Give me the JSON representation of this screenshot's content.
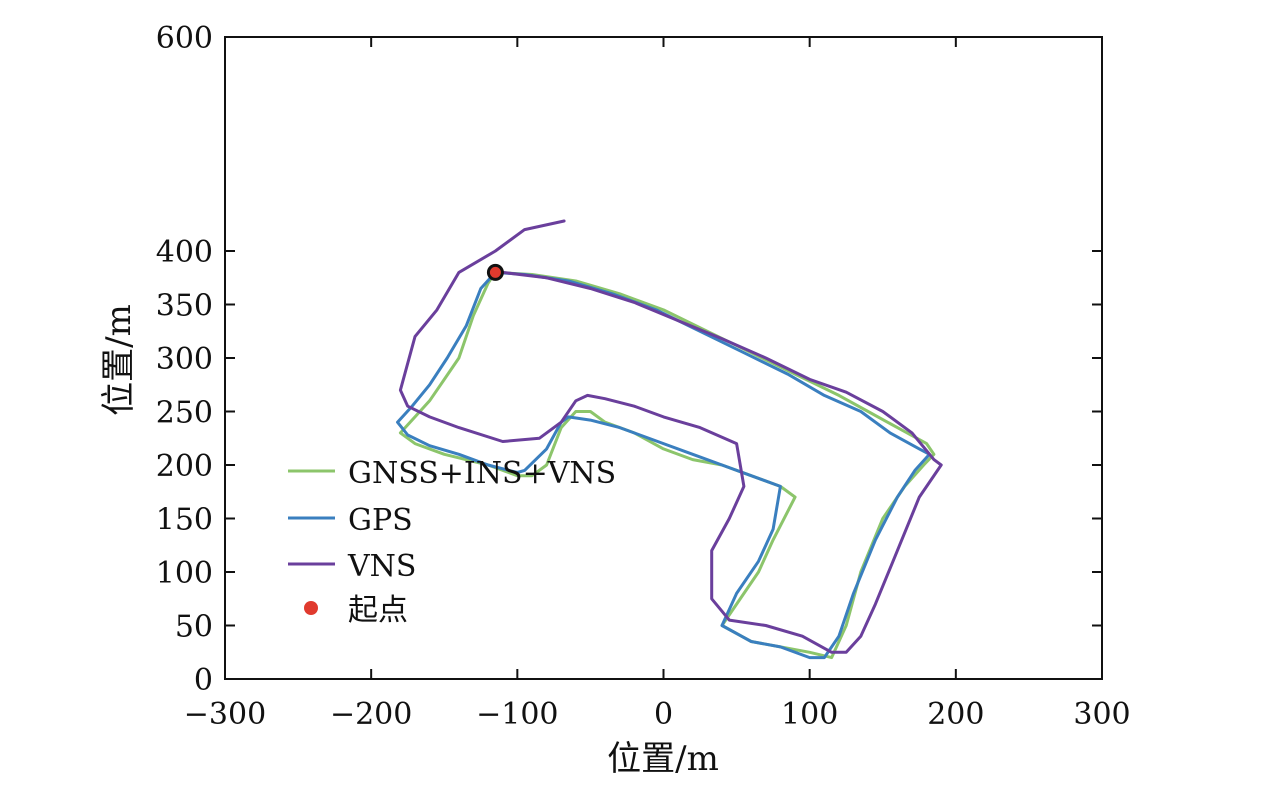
{
  "chart_data": {
    "type": "line",
    "title": "",
    "xlabel": "位置/m",
    "ylabel": "位置/m",
    "xlim": [
      -300,
      300
    ],
    "ylim": [
      0,
      600
    ],
    "xticks": [
      -300,
      -200,
      -100,
      0,
      100,
      200,
      300
    ],
    "yticks": [
      0,
      50,
      100,
      150,
      200,
      250,
      300,
      350,
      400,
      600
    ],
    "xtick_labels": [
      "−300",
      "−200",
      "−100",
      "0",
      "100",
      "200",
      "300"
    ],
    "ytick_labels": [
      "0",
      "50",
      "100",
      "150",
      "200",
      "250",
      "300",
      "350",
      "400",
      "600"
    ],
    "grid": false,
    "legend_position": "lower-left",
    "series": [
      {
        "name": "GNSS+INS+VNS",
        "color": "#8cc56b",
        "x": [
          -115,
          -120,
          -130,
          -140,
          -150,
          -160,
          -170,
          -180,
          -170,
          -150,
          -120,
          -100,
          -90,
          -80,
          -70,
          -60,
          -50,
          -40,
          -20,
          0,
          20,
          40,
          60,
          80,
          90,
          75,
          65,
          50,
          40,
          60,
          80,
          100,
          115,
          125,
          135,
          150,
          165,
          178,
          185,
          180,
          160,
          140,
          120,
          90,
          60,
          30,
          0,
          -30,
          -60,
          -90,
          -115
        ],
        "y": [
          380,
          370,
          340,
          300,
          280,
          260,
          245,
          230,
          220,
          210,
          200,
          190,
          190,
          200,
          235,
          250,
          250,
          240,
          230,
          215,
          205,
          200,
          190,
          180,
          170,
          130,
          100,
          70,
          50,
          35,
          30,
          25,
          20,
          50,
          100,
          150,
          180,
          200,
          210,
          220,
          235,
          250,
          265,
          285,
          305,
          325,
          345,
          360,
          372,
          378,
          380
        ]
      },
      {
        "name": "GPS",
        "color": "#3a7fbf",
        "x": [
          -115,
          -125,
          -135,
          -148,
          -160,
          -172,
          -182,
          -175,
          -160,
          -140,
          -120,
          -100,
          -95,
          -80,
          -70,
          -65,
          -50,
          -30,
          0,
          20,
          40,
          60,
          80,
          75,
          65,
          50,
          40,
          60,
          80,
          100,
          110,
          120,
          130,
          145,
          160,
          172,
          182,
          175,
          155,
          135,
          110,
          85,
          55,
          25,
          -5,
          -35,
          -65,
          -95,
          -115
        ],
        "y": [
          380,
          365,
          330,
          300,
          275,
          255,
          240,
          228,
          218,
          210,
          200,
          193,
          195,
          215,
          240,
          245,
          242,
          235,
          220,
          210,
          200,
          190,
          180,
          140,
          110,
          80,
          50,
          35,
          30,
          20,
          20,
          40,
          80,
          130,
          170,
          195,
          210,
          215,
          230,
          250,
          265,
          285,
          305,
          325,
          345,
          360,
          372,
          378,
          380
        ]
      },
      {
        "name": "VNS",
        "color": "#6a3f9c",
        "x": [
          -68,
          -95,
          -115,
          -140,
          -155,
          -170,
          -180,
          -175,
          -160,
          -140,
          -110,
          -85,
          -70,
          -60,
          -52,
          -40,
          -20,
          0,
          25,
          50,
          55,
          45,
          33,
          33,
          45,
          70,
          95,
          115,
          125,
          135,
          145,
          160,
          175,
          190,
          185,
          170,
          150,
          125,
          100,
          70,
          40,
          10,
          -20,
          -50,
          -80,
          -110
        ],
        "y": [
          428,
          420,
          400,
          380,
          345,
          320,
          270,
          255,
          245,
          235,
          222,
          225,
          240,
          260,
          265,
          262,
          255,
          245,
          235,
          220,
          180,
          150,
          120,
          75,
          55,
          50,
          40,
          25,
          25,
          40,
          70,
          120,
          170,
          200,
          205,
          230,
          250,
          268,
          280,
          300,
          318,
          335,
          352,
          365,
          375,
          380
        ]
      }
    ],
    "start_point": {
      "name": "起点",
      "x": -115,
      "y": 380,
      "color": "#e03a2e"
    }
  }
}
